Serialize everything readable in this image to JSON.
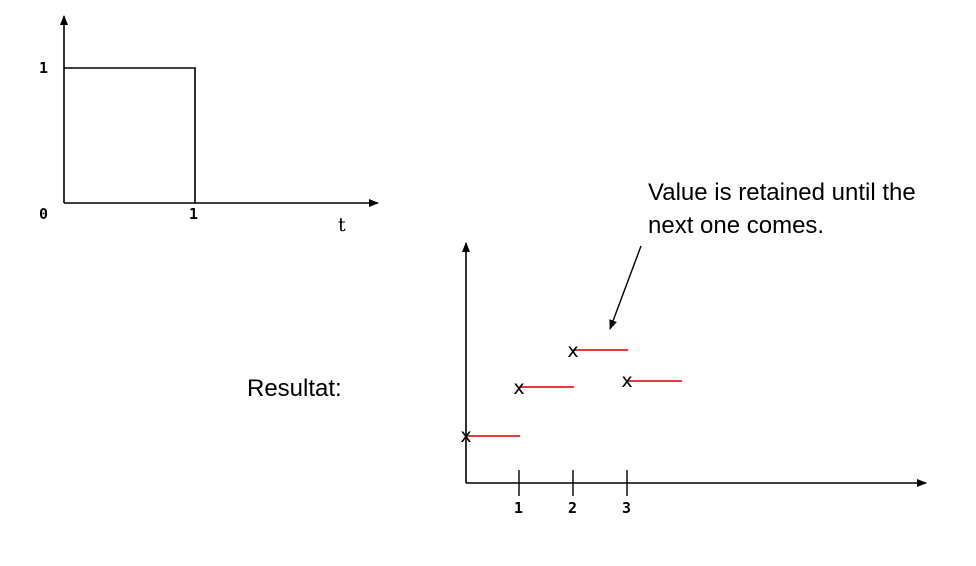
{
  "top_plot": {
    "y_tick_1": "1",
    "y_tick_0": "0",
    "x_tick_1": "1",
    "x_label": "t"
  },
  "annotation": {
    "line1": "Value is retained until the",
    "line2": "next one comes."
  },
  "result_label": "Resultat:",
  "bottom_plot": {
    "x_ticks": [
      "1",
      "2",
      "3"
    ],
    "marker": "x",
    "hold_color": "#e02020"
  }
}
